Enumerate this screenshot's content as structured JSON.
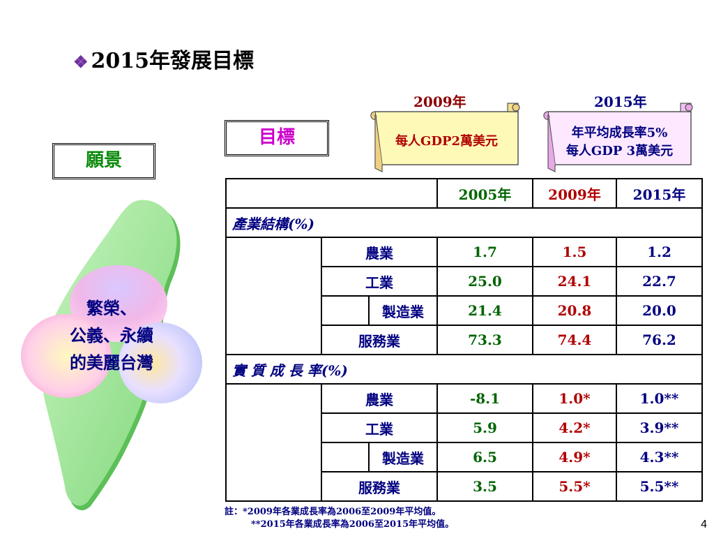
{
  "title": "2015年發展目標",
  "bullet": "❖",
  "vision_label": "願景",
  "goal_label": "目標",
  "vision_text": [
    "繁榮、",
    "公義、永續",
    "的美麗台灣"
  ],
  "scroll_2009": {
    "year": "2009年",
    "text": "每人GDP2萬美元"
  },
  "scroll_2015": {
    "year": "2015年",
    "line1": "年平均成長率5%",
    "line2": "每人GDP 3萬美元"
  },
  "table": {
    "headers": [
      "2005年",
      "2009年",
      "2015年"
    ],
    "section1": "產業結構(%)",
    "section1_rows": [
      {
        "label": "農業",
        "v": [
          "1.7",
          "1.5",
          "1.2"
        ]
      },
      {
        "label": "工業",
        "v": [
          "25.0",
          "24.1",
          "22.7"
        ]
      },
      {
        "label": "製造業",
        "v": [
          "21.4",
          "20.8",
          "20.0"
        ]
      },
      {
        "label": "服務業",
        "v": [
          "73.3",
          "74.4",
          "76.2"
        ]
      }
    ],
    "section2": "實 質 成 長 率(%)",
    "section2_rows": [
      {
        "label": "農業",
        "v": [
          "-8.1",
          "1.0*",
          "1.0**"
        ]
      },
      {
        "label": "工業",
        "v": [
          "5.9",
          "4.2*",
          "3.9**"
        ]
      },
      {
        "label": "製造業",
        "v": [
          "6.5",
          "4.9*",
          "4.3**"
        ]
      },
      {
        "label": "服務業",
        "v": [
          "3.5",
          "5.5*",
          "5.5**"
        ]
      }
    ]
  },
  "note_line1": "註：*2009年各業成長率為2006至2009年平均值。",
  "note_line2": "**2015年各業成長率為2006至2015年平均值。",
  "page_number": "4",
  "colors": {
    "vision_green": "#0a8a0a",
    "goal_magenta": "#cc00cc",
    "year2009_red": "#b00000",
    "year2015_navy": "#000080",
    "year2005_green": "#006400"
  }
}
